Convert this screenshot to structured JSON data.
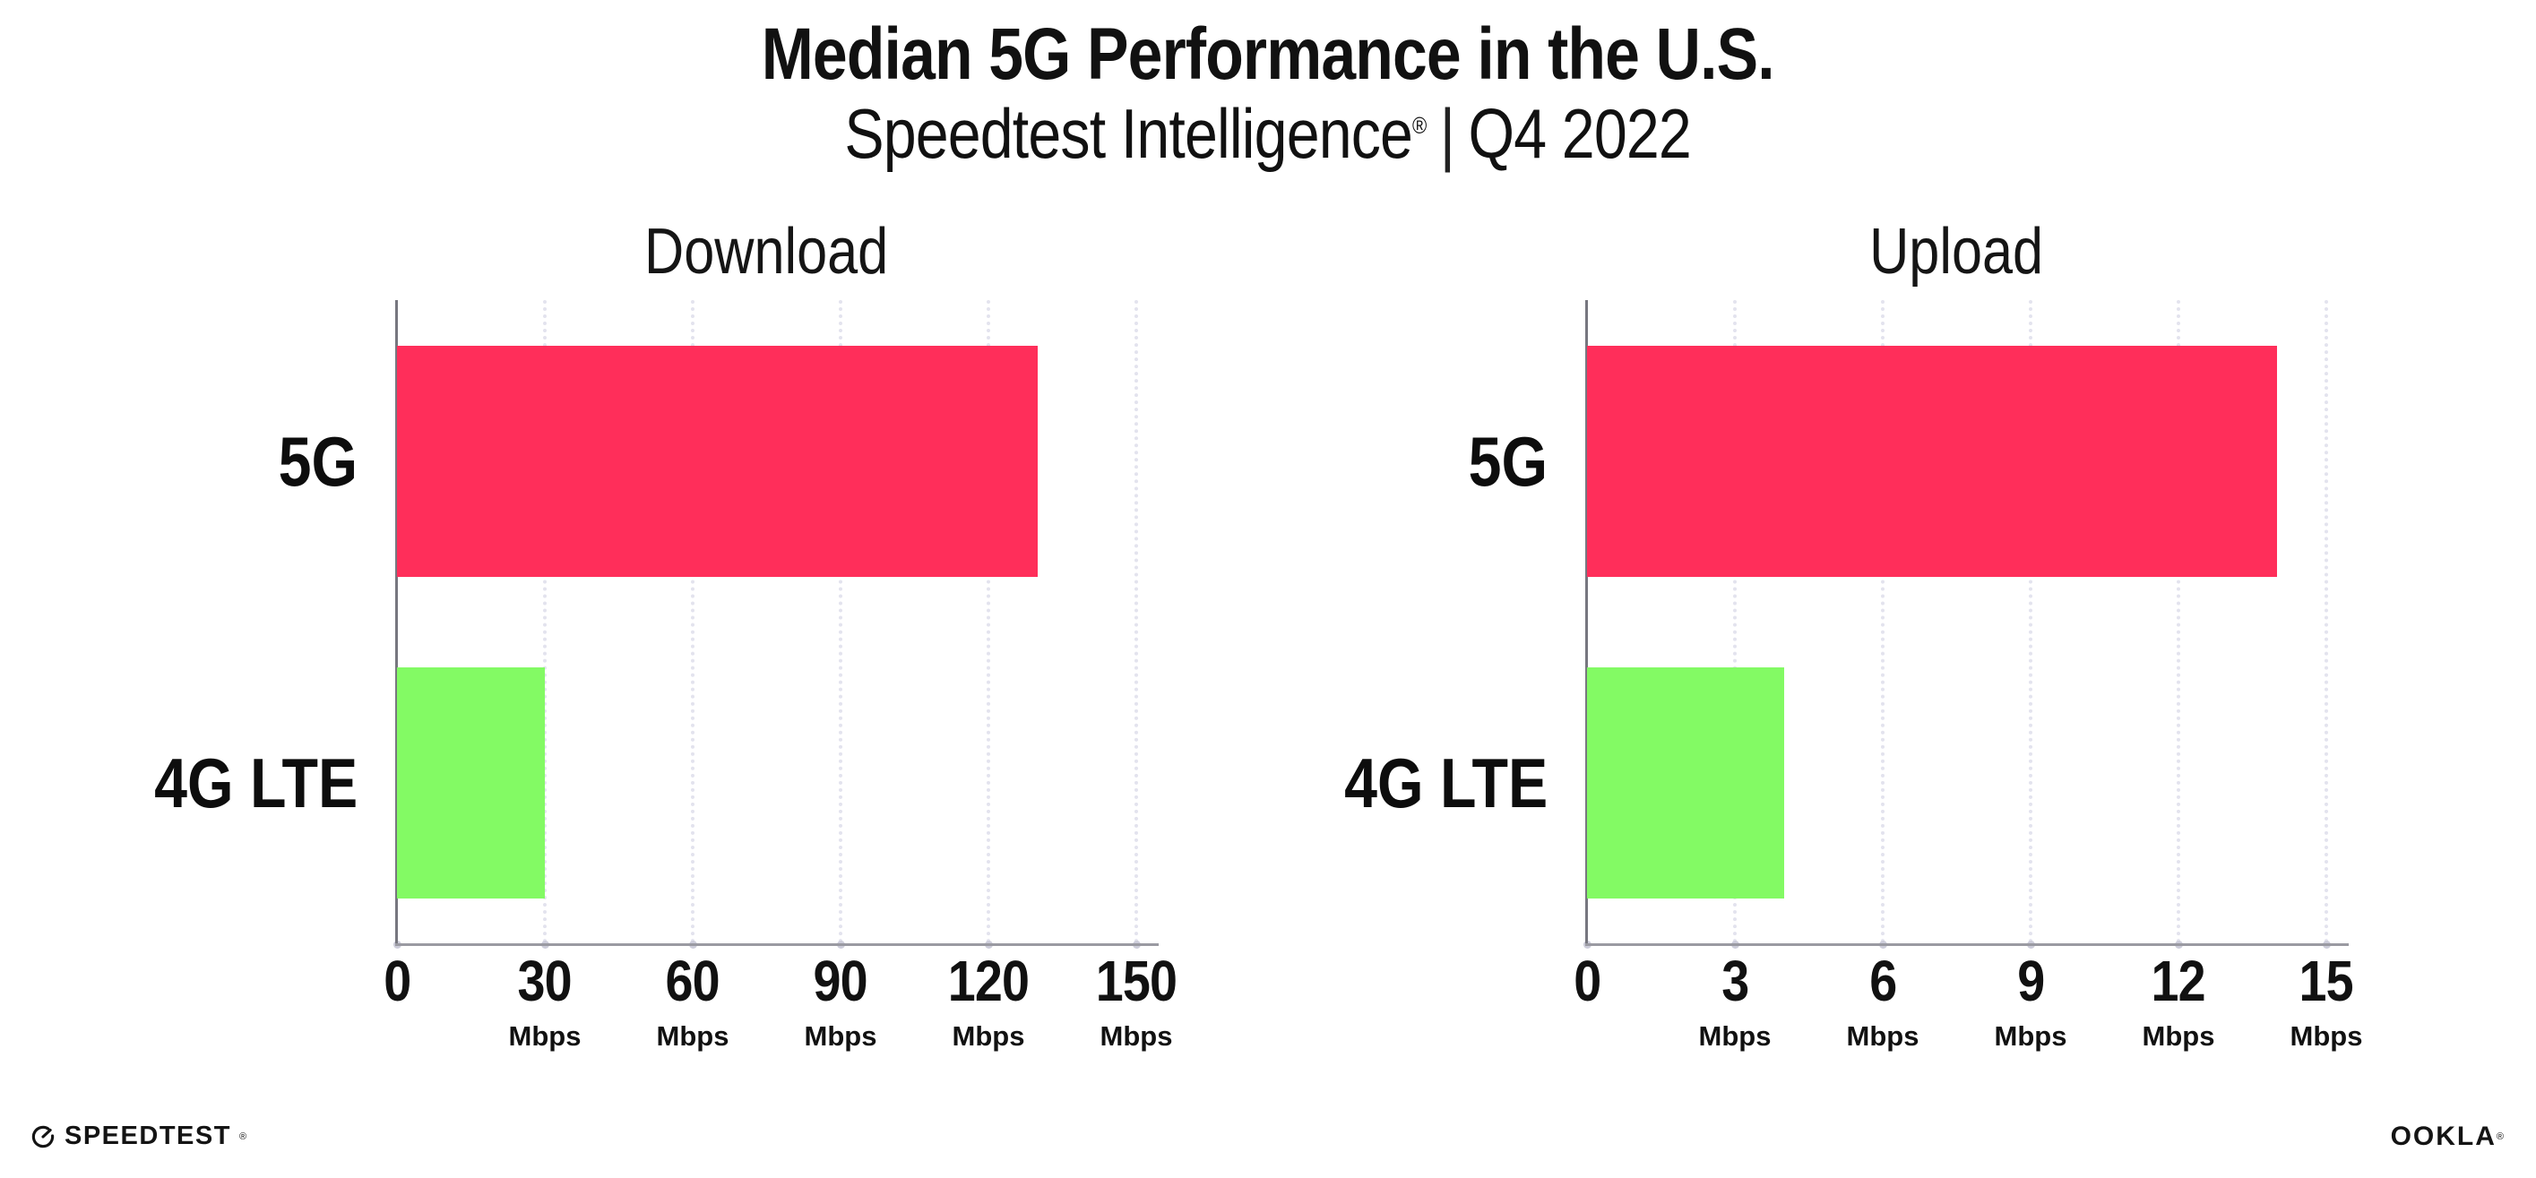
{
  "header": {
    "title": "Median 5G Performance in the U.S.",
    "subtitle_brand": "Speedtest Intelligence",
    "subtitle_reg": "®",
    "subtitle_sep": "|",
    "subtitle_period": "Q4 2022"
  },
  "chart_data": [
    {
      "type": "bar",
      "orientation": "horizontal",
      "title": "Download",
      "categories": [
        "5G",
        "4G LTE"
      ],
      "values": [
        130,
        30
      ],
      "unit": "Mbps",
      "xlim": [
        0,
        150
      ],
      "xticks": [
        0,
        30,
        60,
        90,
        120,
        150
      ],
      "grid": "dotted-vertical",
      "category_colors": [
        "#FF2E5A",
        "#83FA64"
      ]
    },
    {
      "type": "bar",
      "orientation": "horizontal",
      "title": "Upload",
      "categories": [
        "5G",
        "4G LTE"
      ],
      "values": [
        14,
        4
      ],
      "unit": "Mbps",
      "xlim": [
        0,
        15
      ],
      "xticks": [
        0,
        3,
        6,
        9,
        12,
        15
      ],
      "grid": "dotted-vertical",
      "category_colors": [
        "#FF2E5A",
        "#83FA64"
      ]
    }
  ],
  "colors": {
    "bar_5g": "#FF2E5A",
    "bar_4g_lte": "#83FA64",
    "y_axis": "#77777f",
    "x_axis": "#9a9aa2",
    "gridline": "#e3e3ee",
    "text": "#111111"
  },
  "footer": {
    "speedtest_label": "SPEEDTEST",
    "speedtest_reg": "®",
    "ookla_label": "OOKLA",
    "ookla_reg": "®"
  }
}
